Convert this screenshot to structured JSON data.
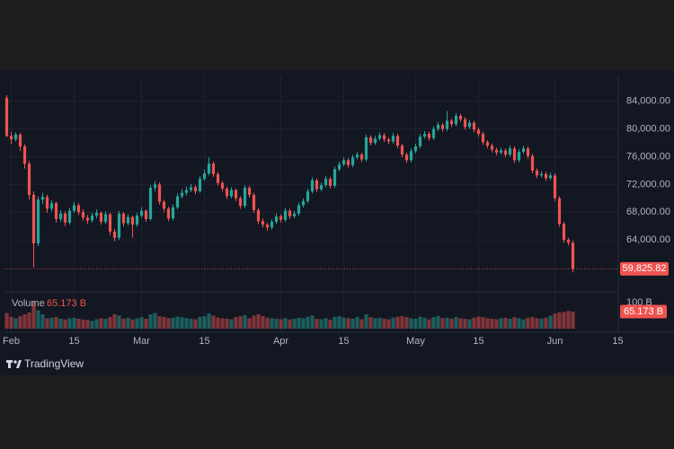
{
  "chart_data": {
    "type": "candlestick",
    "up_color": "#26a69a",
    "down_color": "#ef5350",
    "grid": true,
    "brand": "TradingView",
    "xlim": [
      -0.5,
      135.7
    ],
    "xticks": [
      {
        "value": 1,
        "label": "Feb"
      },
      {
        "value": 15,
        "label": "15"
      },
      {
        "value": 30,
        "label": "Mar"
      },
      {
        "value": 44,
        "label": "15"
      },
      {
        "value": 61,
        "label": "Apr"
      },
      {
        "value": 75,
        "label": "15"
      },
      {
        "value": 91,
        "label": "May"
      },
      {
        "value": 105,
        "label": "15"
      },
      {
        "value": 122,
        "label": "Jun"
      },
      {
        "value": 136,
        "label": "15"
      }
    ],
    "ylim": [
      56500,
      87600
    ],
    "yticks": [
      {
        "value": 64000,
        "label": "64,000.00"
      },
      {
        "value": 68000,
        "label": "68,000.00"
      },
      {
        "value": 72000,
        "label": "72,000.00"
      },
      {
        "value": 76000,
        "label": "76,000.00"
      },
      {
        "value": 80000,
        "label": "80,000.00"
      },
      {
        "value": 84000,
        "label": "84,000.00"
      }
    ],
    "last_price_label": "59,825.82",
    "ohlc": [
      [
        84500,
        84900,
        78800,
        79000
      ],
      [
        79000,
        79600,
        77800,
        78500
      ],
      [
        78500,
        79500,
        78200,
        79200
      ],
      [
        79200,
        79400,
        76800,
        77500
      ],
      [
        77500,
        77800,
        74300,
        75000
      ],
      [
        75000,
        75400,
        69800,
        70500
      ],
      [
        70500,
        71000,
        60000,
        63500
      ],
      [
        63500,
        70300,
        63100,
        69800
      ],
      [
        69800,
        70800,
        69200,
        70200
      ],
      [
        70200,
        70500,
        67900,
        68500
      ],
      [
        68500,
        69700,
        68100,
        69300
      ],
      [
        69300,
        69500,
        66500,
        67000
      ],
      [
        67000,
        68300,
        66600,
        67800
      ],
      [
        67800,
        68100,
        66000,
        66500
      ],
      [
        66500,
        68600,
        66200,
        68200
      ],
      [
        68200,
        69500,
        67900,
        69000
      ],
      [
        69000,
        69300,
        67600,
        68000
      ],
      [
        68000,
        68400,
        66800,
        67200
      ],
      [
        67200,
        67600,
        66300,
        66800
      ],
      [
        66800,
        67900,
        66500,
        67500
      ],
      [
        67500,
        68400,
        67100,
        67900
      ],
      [
        67900,
        68100,
        66200,
        66600
      ],
      [
        66600,
        68100,
        66300,
        67700
      ],
      [
        67700,
        67900,
        64700,
        65200
      ],
      [
        65200,
        65600,
        63800,
        64300
      ],
      [
        64300,
        68200,
        64000,
        67800
      ],
      [
        67800,
        68000,
        65900,
        66400
      ],
      [
        66400,
        67700,
        66100,
        67300
      ],
      [
        67300,
        67500,
        64300,
        66200
      ],
      [
        66200,
        67900,
        65900,
        67500
      ],
      [
        67500,
        68700,
        67200,
        68200
      ],
      [
        68200,
        68400,
        66600,
        67000
      ],
      [
        67000,
        71900,
        66800,
        71500
      ],
      [
        71500,
        72500,
        71000,
        72000
      ],
      [
        72000,
        72300,
        69100,
        69500
      ],
      [
        69500,
        69800,
        68000,
        68500
      ],
      [
        68500,
        68800,
        66700,
        67100
      ],
      [
        67100,
        69100,
        66800,
        68700
      ],
      [
        68700,
        70700,
        68400,
        70300
      ],
      [
        70300,
        71300,
        70000,
        70800
      ],
      [
        70800,
        71700,
        70400,
        71200
      ],
      [
        71200,
        72100,
        70900,
        71600
      ],
      [
        71600,
        71900,
        70600,
        71000
      ],
      [
        71000,
        73200,
        70800,
        72800
      ],
      [
        72800,
        74100,
        72500,
        73600
      ],
      [
        73600,
        75900,
        73300,
        75000
      ],
      [
        75000,
        75300,
        73100,
        73500
      ],
      [
        73500,
        73800,
        71800,
        72200
      ],
      [
        72200,
        72500,
        71000,
        71400
      ],
      [
        71400,
        71700,
        69900,
        70300
      ],
      [
        70300,
        71600,
        70000,
        71200
      ],
      [
        71200,
        71400,
        69600,
        70000
      ],
      [
        70000,
        70300,
        68500,
        68900
      ],
      [
        68900,
        71900,
        68600,
        71500
      ],
      [
        71500,
        71800,
        70100,
        70500
      ],
      [
        70500,
        70800,
        67900,
        68300
      ],
      [
        68300,
        68600,
        66300,
        66700
      ],
      [
        66700,
        67100,
        65800,
        66200
      ],
      [
        66200,
        66500,
        65300,
        65800
      ],
      [
        65800,
        67000,
        65500,
        66600
      ],
      [
        66600,
        67800,
        66300,
        67400
      ],
      [
        67400,
        67700,
        66500,
        66900
      ],
      [
        66900,
        68600,
        66600,
        68200
      ],
      [
        68200,
        68500,
        67000,
        67400
      ],
      [
        67400,
        68200,
        67100,
        67800
      ],
      [
        67800,
        69400,
        67500,
        69000
      ],
      [
        69000,
        70000,
        68700,
        69600
      ],
      [
        69600,
        71400,
        69300,
        71000
      ],
      [
        71000,
        73000,
        70700,
        72600
      ],
      [
        72600,
        72900,
        70900,
        71300
      ],
      [
        71300,
        72300,
        71000,
        71900
      ],
      [
        71900,
        73200,
        71600,
        72800
      ],
      [
        72800,
        73100,
        71400,
        71800
      ],
      [
        71800,
        74600,
        71500,
        74200
      ],
      [
        74200,
        75300,
        73900,
        74900
      ],
      [
        74900,
        75900,
        74600,
        75500
      ],
      [
        75500,
        75800,
        74400,
        74800
      ],
      [
        74800,
        76300,
        74500,
        75900
      ],
      [
        75900,
        76700,
        75600,
        76300
      ],
      [
        76300,
        76600,
        75200,
        75600
      ],
      [
        75600,
        79200,
        75300,
        78800
      ],
      [
        78800,
        79100,
        77600,
        78000
      ],
      [
        78000,
        79000,
        77700,
        78600
      ],
      [
        78600,
        79500,
        78300,
        79100
      ],
      [
        79100,
        79400,
        78100,
        78500
      ],
      [
        78500,
        78800,
        77800,
        78200
      ],
      [
        78200,
        79400,
        77900,
        79000
      ],
      [
        79000,
        79300,
        77200,
        77600
      ],
      [
        77600,
        77900,
        75900,
        76300
      ],
      [
        76300,
        76600,
        75100,
        75500
      ],
      [
        75500,
        77200,
        75200,
        76800
      ],
      [
        76800,
        77900,
        76500,
        77500
      ],
      [
        77500,
        79300,
        77200,
        78900
      ],
      [
        78900,
        79700,
        78600,
        79300
      ],
      [
        79300,
        79600,
        78300,
        78700
      ],
      [
        78700,
        80400,
        78400,
        80000
      ],
      [
        80000,
        81000,
        79700,
        80600
      ],
      [
        80600,
        80900,
        79600,
        80000
      ],
      [
        80000,
        82600,
        79700,
        81200
      ],
      [
        81200,
        81500,
        80300,
        80700
      ],
      [
        80700,
        82300,
        80400,
        81900
      ],
      [
        81900,
        82200,
        81000,
        81400
      ],
      [
        81400,
        81700,
        79900,
        80300
      ],
      [
        80300,
        81300,
        80000,
        80900
      ],
      [
        80900,
        81200,
        79500,
        79900
      ],
      [
        79900,
        80200,
        78900,
        79300
      ],
      [
        79300,
        79600,
        77700,
        78100
      ],
      [
        78100,
        78400,
        77200,
        77600
      ],
      [
        77600,
        77900,
        76600,
        77000
      ],
      [
        77000,
        77300,
        76200,
        76600
      ],
      [
        76600,
        77300,
        76300,
        76900
      ],
      [
        76900,
        77200,
        75900,
        76300
      ],
      [
        76300,
        77600,
        76000,
        77200
      ],
      [
        77200,
        77500,
        75100,
        75500
      ],
      [
        75500,
        77100,
        75200,
        76700
      ],
      [
        76700,
        77600,
        76400,
        77200
      ],
      [
        77200,
        77500,
        75700,
        76100
      ],
      [
        76100,
        76400,
        73600,
        74000
      ],
      [
        74000,
        74300,
        72900,
        73300
      ],
      [
        73300,
        73900,
        73000,
        73500
      ],
      [
        73500,
        73800,
        72500,
        72900
      ],
      [
        72900,
        73700,
        72600,
        73300
      ],
      [
        73300,
        73600,
        69600,
        70000
      ],
      [
        70000,
        70300,
        65900,
        66300
      ],
      [
        66300,
        66600,
        63600,
        64000
      ],
      [
        64000,
        64300,
        63200,
        63600
      ],
      [
        63600,
        63900,
        59300,
        59825.82
      ]
    ],
    "volume": {
      "name": "Volume",
      "last_label": "65.173 B",
      "ylim": [
        0,
        134
      ],
      "yticks": [
        {
          "value": 100,
          "label": "100 B"
        }
      ],
      "values": [
        60,
        45,
        40,
        48,
        55,
        62,
        105,
        70,
        55,
        40,
        42,
        45,
        38,
        35,
        40,
        42,
        38,
        35,
        33,
        30,
        36,
        40,
        38,
        45,
        55,
        50,
        38,
        42,
        36,
        40,
        44,
        38,
        55,
        60,
        48,
        45,
        40,
        42,
        46,
        44,
        40,
        38,
        36,
        45,
        48,
        58,
        50,
        42,
        40,
        38,
        36,
        44,
        48,
        52,
        40,
        50,
        55,
        48,
        42,
        40,
        38,
        36,
        40,
        35,
        38,
        42,
        40,
        46,
        50,
        38,
        36,
        40,
        34,
        45,
        48,
        42,
        40,
        38,
        45,
        36,
        55,
        44,
        40,
        42,
        38,
        36,
        42,
        46,
        48,
        44,
        40,
        38,
        46,
        42,
        36,
        44,
        48,
        40,
        42,
        38,
        45,
        40,
        38,
        36,
        42,
        46,
        44,
        40,
        38,
        36,
        40,
        42,
        38,
        44,
        40,
        36,
        42,
        45,
        40,
        38,
        42,
        50,
        58,
        62,
        64,
        68,
        65.173
      ]
    }
  }
}
